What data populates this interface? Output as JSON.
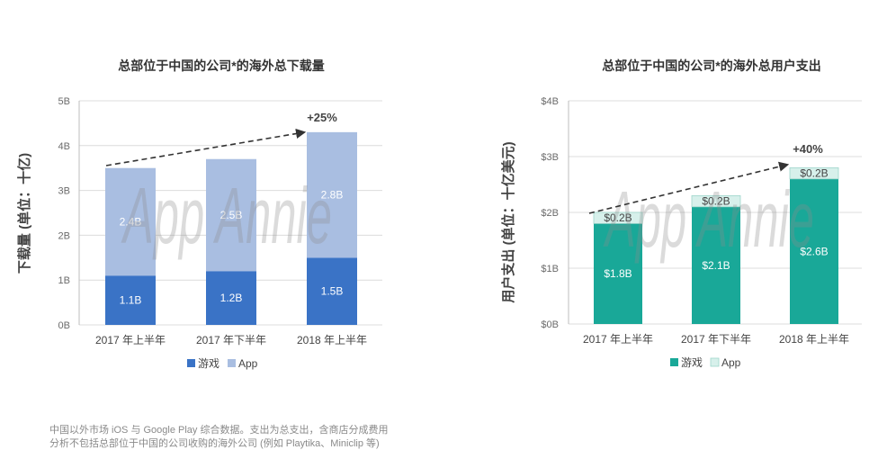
{
  "chart_data": [
    {
      "type": "bar",
      "stacked": true,
      "title": "总部位于中国的公司*的海外总下载量",
      "ylabel": "下载量 (单位：十亿)",
      "categories": [
        "2017 年上半年",
        "2017 年下半年",
        "2018 年上半年"
      ],
      "series": [
        {
          "name": "游戏",
          "values": [
            1.1,
            1.2,
            1.5
          ],
          "labels": [
            "1.1B",
            "1.2B",
            "1.5B"
          ],
          "color": "#3a73c6",
          "label_color": "#ffffff"
        },
        {
          "name": "App",
          "values": [
            2.4,
            2.5,
            2.8
          ],
          "labels": [
            "2.4B",
            "2.5B",
            "2.8B"
          ],
          "color": "#a9bee1",
          "label_color": "#ffffff"
        }
      ],
      "ylim": [
        0,
        5
      ],
      "yticks": [
        0,
        1,
        2,
        3,
        4,
        5
      ],
      "ytick_labels": [
        "0B",
        "1B",
        "2B",
        "3B",
        "4B",
        "5B"
      ],
      "grid": true,
      "legend": "bottom",
      "annotation": "+25%"
    },
    {
      "type": "bar",
      "stacked": true,
      "title": "总部位于中国的公司*的海外总用户支出",
      "ylabel": "用户支出 (单位：十亿美元)",
      "categories": [
        "2017 年上半年",
        "2017 年下半年",
        "2018 年上半年"
      ],
      "series": [
        {
          "name": "游戏",
          "values": [
            1.8,
            2.1,
            2.6
          ],
          "labels": [
            "$1.8B",
            "$2.1B",
            "$2.6B"
          ],
          "color": "#19a898",
          "label_color": "#ffffff"
        },
        {
          "name": "App",
          "values": [
            0.2,
            0.2,
            0.2
          ],
          "labels": [
            "$0.2B",
            "$0.2B",
            "$0.2B"
          ],
          "color": "#d7f0eb",
          "label_color": "#444444"
        }
      ],
      "ylim": [
        0,
        4
      ],
      "yticks": [
        0,
        1,
        2,
        3,
        4
      ],
      "ytick_labels": [
        "$0B",
        "$1B",
        "$2B",
        "$3B",
        "$4B"
      ],
      "grid": true,
      "legend": "bottom",
      "annotation": "+40%"
    }
  ],
  "watermark": "App Annie",
  "footnote": [
    "中国以外市场 iOS 与 Google Play 综合数据。支出为总支出，含商店分成费用",
    "分析不包括总部位于中国的公司收购的海外公司 (例如 Playtika、Miniclip 等)"
  ]
}
